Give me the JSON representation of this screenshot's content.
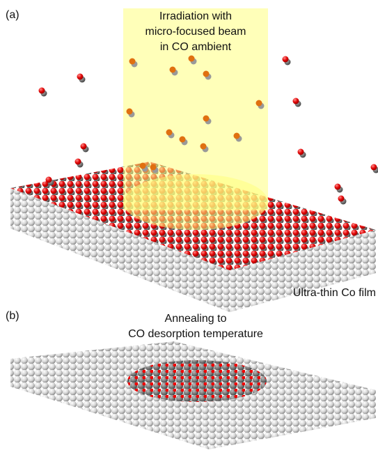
{
  "panel_a": {
    "label": "(a)",
    "beam_label": [
      "Irradiation with",
      "micro-focused beam",
      "in CO ambient"
    ],
    "film_label": "Ultra-thin Co film"
  },
  "panel_b": {
    "label": "(b)",
    "anneal_label": [
      "Annealing to",
      "CO desorption temperature"
    ]
  }
}
